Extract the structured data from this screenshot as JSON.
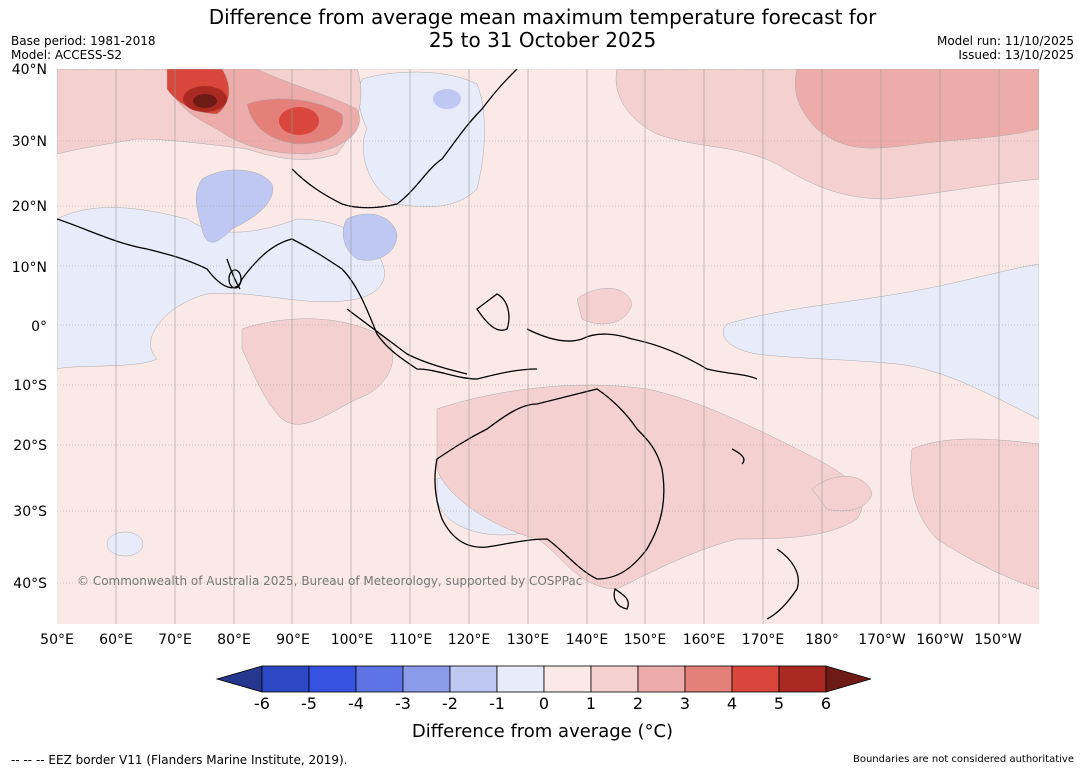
{
  "header": {
    "title_line1": "Difference from average mean maximum temperature forecast for",
    "title_line2": "25 to 31 October 2025",
    "base_period": "Base period: 1981-2018",
    "model": "Model: ACCESS-S2",
    "model_run": "Model run: 11/10/2025",
    "issued": "Issued: 13/10/2025"
  },
  "map": {
    "lat_labels": [
      "40°N",
      "30°N",
      "20°N",
      "10°N",
      "0°",
      "10°S",
      "20°S",
      "30°S",
      "40°S"
    ],
    "lon_labels": [
      "50°E",
      "60°E",
      "70°E",
      "80°E",
      "90°E",
      "100°E",
      "110°E",
      "120°E",
      "130°E",
      "140°E",
      "150°E",
      "160°E",
      "170°E",
      "180°",
      "170°W",
      "160°W",
      "150°W"
    ],
    "copyright": "© Commonwealth of Australia 2025, Bureau of Meteorology, supported by COSPPac"
  },
  "colorbar": {
    "ticks": [
      "-6",
      "-5",
      "-4",
      "-3",
      "-2",
      "-1",
      "0",
      "1",
      "2",
      "3",
      "4",
      "5",
      "6"
    ],
    "label": "Difference from average (°C)",
    "colors": [
      "#26378f",
      "#2d48c4",
      "#3652e0",
      "#5e74e4",
      "#8c9be9",
      "#bfc7f3",
      "#e8ebfa",
      "#fbe9e8",
      "#f4d1cf",
      "#edaca9",
      "#e57f79",
      "#d9463c",
      "#aa2a22",
      "#6e1a15"
    ]
  },
  "footer": {
    "eez": "--  --  -- EEZ border V11 (Flanders Marine Institute, 2019).",
    "boundaries": "Boundaries are not considered authoritative"
  }
}
